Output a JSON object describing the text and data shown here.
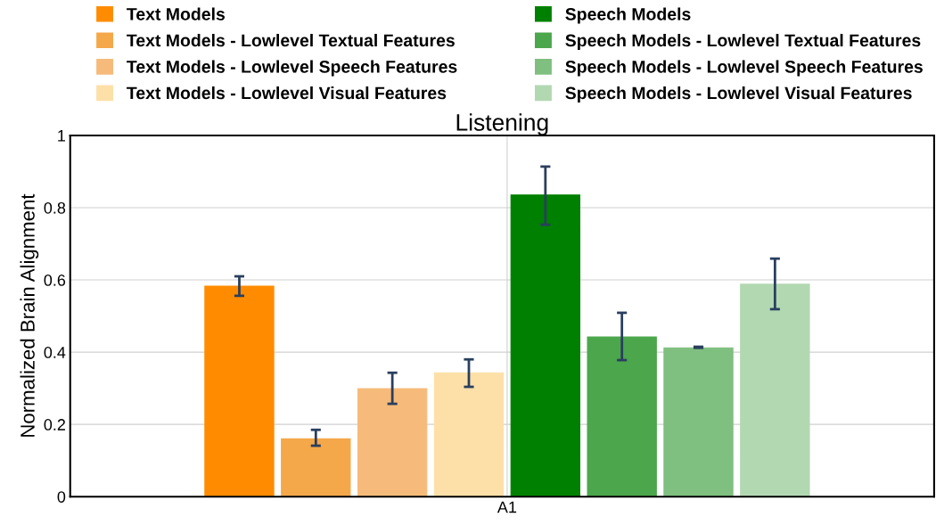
{
  "chart_data": {
    "type": "bar",
    "title": "Listening",
    "ylabel": "Normalized Brain Alignment",
    "categories": [
      "A1"
    ],
    "series": [
      {
        "name": "Text Models",
        "color": "#ff8c00",
        "values": [
          0.583
        ],
        "errors": [
          [
            0.556,
            0.61
          ]
        ]
      },
      {
        "name": "Text Models - Lowlevel Textual Features",
        "color": "#f4a84a",
        "values": [
          0.16
        ],
        "errors": [
          [
            0.141,
            0.185
          ]
        ]
      },
      {
        "name": "Text Models - Lowlevel Speech Features",
        "color": "#f6bb7a",
        "values": [
          0.299
        ],
        "errors": [
          [
            0.257,
            0.343
          ]
        ]
      },
      {
        "name": "Text Models - Lowlevel Visual Features",
        "color": "#fde0a8",
        "values": [
          0.343
        ],
        "errors": [
          [
            0.304,
            0.38
          ]
        ]
      },
      {
        "name": "Speech Models",
        "color": "#008000",
        "values": [
          0.835
        ],
        "errors": [
          [
            0.753,
            0.914
          ]
        ]
      },
      {
        "name": "Speech Models - Lowlevel Textual Features",
        "color": "#4ca64c",
        "values": [
          0.442
        ],
        "errors": [
          [
            0.378,
            0.509
          ]
        ]
      },
      {
        "name": "Speech Models - Lowlevel Speech Features",
        "color": "#7fbf7f",
        "values": [
          0.412
        ],
        "errors": [
          [
            0.412,
            0.415
          ]
        ]
      },
      {
        "name": "Speech Models - Lowlevel Visual Features",
        "color": "#b2d8b2",
        "values": [
          0.588
        ],
        "errors": [
          [
            0.519,
            0.659
          ]
        ]
      }
    ],
    "ylim": [
      0,
      1
    ],
    "yticks": [
      0,
      0.2,
      0.4,
      0.6,
      0.8,
      1
    ],
    "grid": true,
    "legend": "top"
  }
}
